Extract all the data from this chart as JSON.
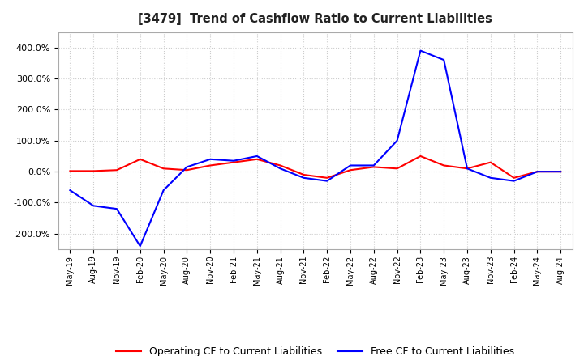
{
  "title": "[3479]  Trend of Cashflow Ratio to Current Liabilities",
  "x_labels": [
    "May-19",
    "Aug-19",
    "Nov-19",
    "Feb-20",
    "May-20",
    "Aug-20",
    "Nov-20",
    "Feb-21",
    "May-21",
    "Aug-21",
    "Nov-21",
    "Feb-22",
    "May-22",
    "Aug-22",
    "Nov-22",
    "Feb-23",
    "May-23",
    "Aug-23",
    "Nov-23",
    "Feb-24",
    "May-24",
    "Aug-24"
  ],
  "operating_cf": [
    2,
    2,
    5,
    40,
    10,
    5,
    20,
    30,
    40,
    20,
    -10,
    -20,
    5,
    15,
    10,
    50,
    20,
    10,
    30,
    -20,
    0,
    0
  ],
  "free_cf": [
    -60,
    -110,
    -120,
    -240,
    -60,
    15,
    40,
    35,
    50,
    10,
    -20,
    -30,
    20,
    20,
    100,
    390,
    360,
    10,
    -20,
    -30,
    0,
    0
  ],
  "operating_color": "#ff0000",
  "free_color": "#0000ff",
  "ylim": [
    -250,
    450
  ],
  "yticks": [
    -200,
    -100,
    0,
    100,
    200,
    300,
    400
  ],
  "background_color": "#ffffff",
  "grid_color": "#cccccc",
  "legend_labels": [
    "Operating CF to Current Liabilities",
    "Free CF to Current Liabilities"
  ]
}
